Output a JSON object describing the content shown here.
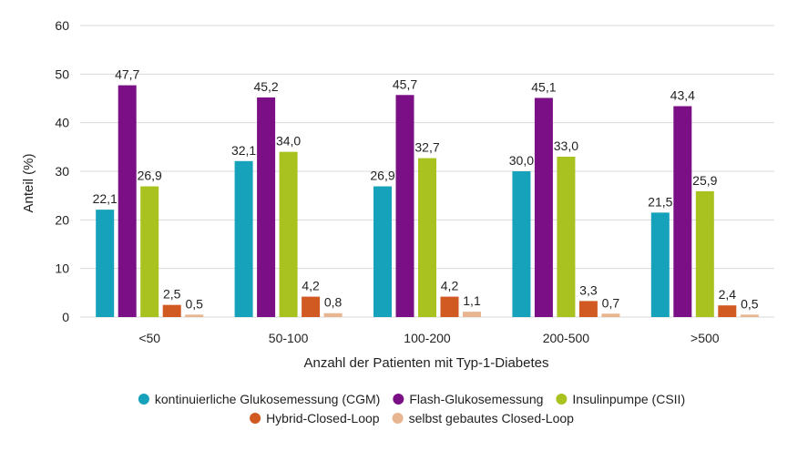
{
  "chart_data": {
    "type": "bar",
    "categories": [
      "<50",
      "50-100",
      "100-200",
      "200-500",
      ">500"
    ],
    "series": [
      {
        "name": "kontinuierliche Glukosemessung (CGM)",
        "color": "#17a2bb",
        "values": [
          22.1,
          32.1,
          26.9,
          30.0,
          21.5
        ],
        "labels": [
          "22,1",
          "32,1",
          "26,9",
          "30,0",
          "21,5"
        ]
      },
      {
        "name": "Flash-Glukosemessung",
        "color": "#7b0f85",
        "values": [
          47.7,
          45.2,
          45.7,
          45.1,
          43.4
        ],
        "labels": [
          "47,7",
          "45,2",
          "45,7",
          "45,1",
          "43,4"
        ]
      },
      {
        "name": "Insulinpumpe (CSII)",
        "color": "#a9c21f",
        "values": [
          26.9,
          34.0,
          32.7,
          33.0,
          25.9
        ],
        "labels": [
          "26,9",
          "34,0",
          "32,7",
          "33,0",
          "25,9"
        ]
      },
      {
        "name": "Hybrid-Closed-Loop",
        "color": "#d05a22",
        "values": [
          2.5,
          4.2,
          4.2,
          3.3,
          2.4
        ],
        "labels": [
          "2,5",
          "4,2",
          "4,2",
          "3,3",
          "2,4"
        ]
      },
      {
        "name": "selbst gebautes Closed-Loop",
        "color": "#e7b58f",
        "values": [
          0.5,
          0.8,
          1.1,
          0.7,
          0.5
        ],
        "labels": [
          "0,5",
          "0,8",
          "1,1",
          "0,7",
          "0,5"
        ]
      }
    ],
    "xlabel": "Anzahl der Patienten mit Typ-1-Diabetes",
    "ylabel": "Anteil (%)",
    "ylim": [
      0,
      60
    ],
    "yticks": [
      0,
      10,
      20,
      30,
      40,
      50,
      60
    ],
    "grid": true,
    "legend": "bottom"
  }
}
